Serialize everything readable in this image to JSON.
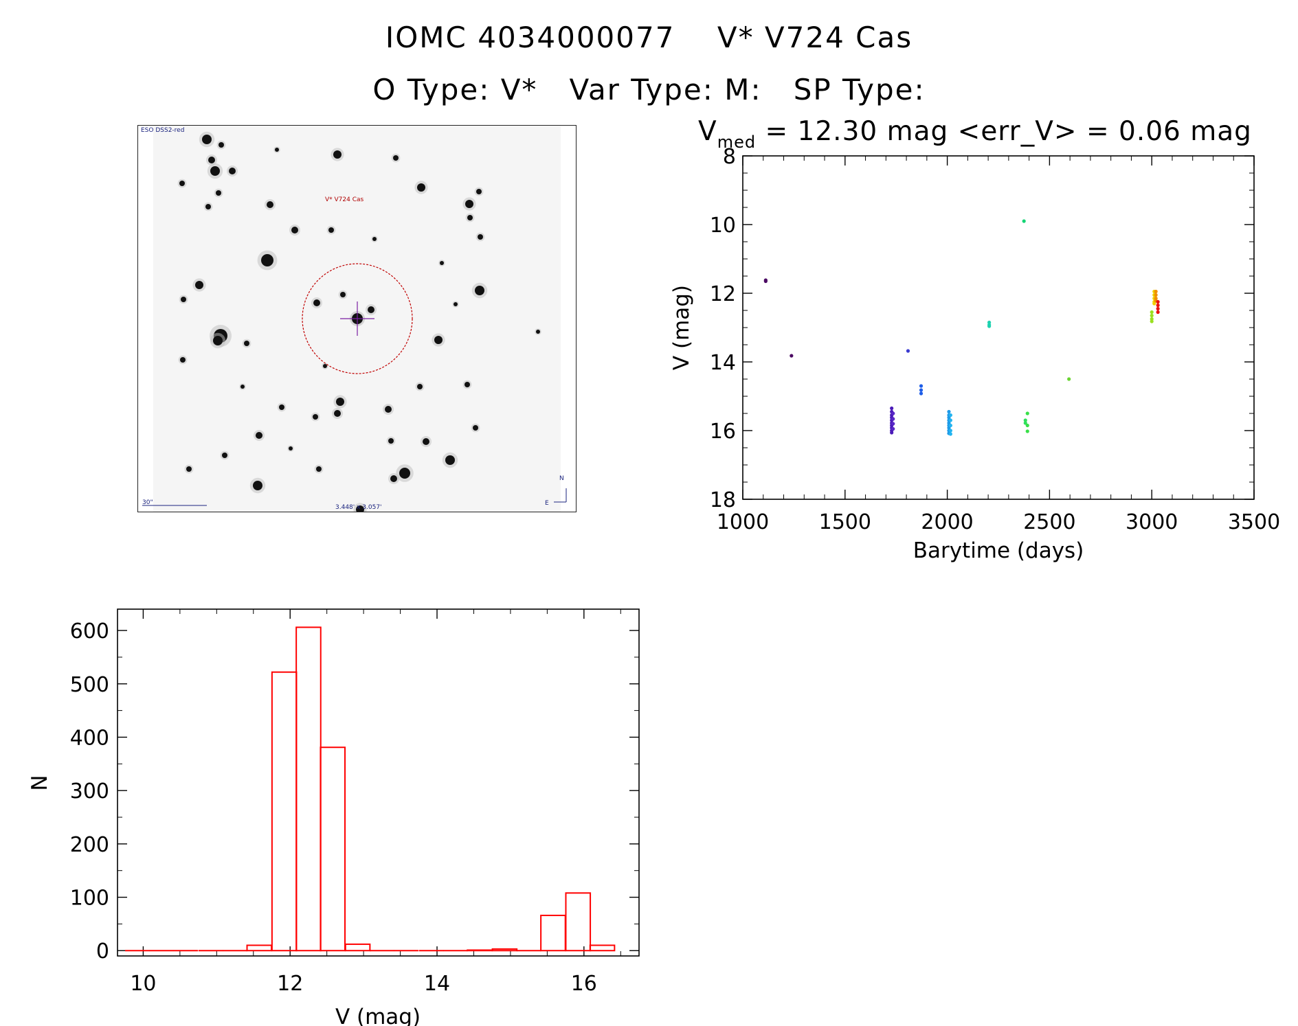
{
  "header": {
    "title_line1": "IOMC 4034000077    V* V724 Cas",
    "title_line2": "O Type: V*   Var Type: M:   SP Type:"
  },
  "sky_image": {
    "survey_label": "ESO DSS2-red",
    "target_label": "V* V724 Cas",
    "scale_label": "30\"",
    "fov_label": "3.448' x 3.057'",
    "compass_north": "N",
    "compass_east": "E",
    "circle_color": "#c00000",
    "cross_color": "#7a1fa2"
  },
  "chart_data": [
    {
      "type": "scatter",
      "subtitle_prefix": "V",
      "subtitle_sub": "med",
      "subtitle_rest": " = 12.30 mag <err_V> = 0.06 mag",
      "xlabel": "Barytime (days)",
      "ylabel": "V (mag)",
      "xlim": [
        1000,
        3500
      ],
      "ylim": [
        18,
        8
      ],
      "y_inverted": true,
      "xticks": [
        1000,
        1500,
        2000,
        2500,
        3000,
        3500
      ],
      "yticks": [
        8,
        10,
        12,
        14,
        16,
        18
      ],
      "clusters": [
        {
          "x": 1112,
          "y": [
            11.62,
            11.65
          ],
          "color": "#4b0a63"
        },
        {
          "x": 1238,
          "y": [
            13.82
          ],
          "color": "#4b0a63"
        },
        {
          "x": 1728,
          "y": [
            15.35,
            15.45,
            15.55,
            15.62,
            15.7,
            15.78,
            15.85,
            15.92,
            16.0,
            16.06
          ],
          "color": "#4b1bb8"
        },
        {
          "x": 1735,
          "y": [
            15.5,
            15.66,
            15.8,
            15.95
          ],
          "color": "#5a28c8"
        },
        {
          "x": 1808,
          "y": [
            13.68
          ],
          "color": "#3a3ad0"
        },
        {
          "x": 1872,
          "y": [
            14.7,
            14.82,
            14.92
          ],
          "color": "#1f5ee8"
        },
        {
          "x": 2008,
          "y": [
            15.45,
            15.55,
            15.62,
            15.7,
            15.78,
            15.85,
            15.92,
            16.0,
            16.08
          ],
          "color": "#1f9ae8"
        },
        {
          "x": 2016,
          "y": [
            15.55,
            15.7,
            15.85,
            16.0,
            16.1
          ],
          "color": "#22b4f0"
        },
        {
          "x": 2205,
          "y": [
            12.85,
            12.92,
            12.96
          ],
          "color": "#1ed2b0"
        },
        {
          "x": 2375,
          "y": [
            9.9
          ],
          "color": "#14d474"
        },
        {
          "x": 2382,
          "y": [
            15.7,
            15.78
          ],
          "color": "#2ee05a"
        },
        {
          "x": 2392,
          "y": [
            15.5,
            15.85,
            16.02
          ],
          "color": "#38e048"
        },
        {
          "x": 2595,
          "y": [
            14.5
          ],
          "color": "#6ad432"
        },
        {
          "x": 3000,
          "y": [
            12.55,
            12.65,
            12.75,
            12.82
          ],
          "color": "#9ae020"
        },
        {
          "x": 3012,
          "y": [
            11.95,
            12.05,
            12.15,
            12.25,
            12.3
          ],
          "color": "#f0d000"
        },
        {
          "x": 3020,
          "y": [
            11.95,
            12.05,
            12.15,
            12.22
          ],
          "color": "#f09000"
        },
        {
          "x": 3030,
          "y": [
            12.25,
            12.35,
            12.45,
            12.55
          ],
          "color": "#e81010"
        }
      ]
    },
    {
      "type": "bar",
      "histogram": true,
      "xlabel": "V (mag)",
      "ylabel": "N",
      "xlim": [
        9.65,
        16.75
      ],
      "ylim": [
        -10,
        640
      ],
      "xticks": [
        10,
        12,
        14,
        16
      ],
      "yticks": [
        0,
        100,
        200,
        300,
        400,
        500,
        600
      ],
      "bin_width": 0.333,
      "bins": [
        {
          "x": 9.92,
          "value": 0
        },
        {
          "x": 10.25,
          "value": 0
        },
        {
          "x": 10.58,
          "value": 0
        },
        {
          "x": 10.92,
          "value": 0
        },
        {
          "x": 11.25,
          "value": 0
        },
        {
          "x": 11.58,
          "value": 10
        },
        {
          "x": 11.92,
          "value": 522
        },
        {
          "x": 12.25,
          "value": 606
        },
        {
          "x": 12.58,
          "value": 381
        },
        {
          "x": 12.92,
          "value": 12
        },
        {
          "x": 13.25,
          "value": 0
        },
        {
          "x": 13.58,
          "value": 0
        },
        {
          "x": 13.92,
          "value": 0
        },
        {
          "x": 14.25,
          "value": 0
        },
        {
          "x": 14.58,
          "value": 1
        },
        {
          "x": 14.92,
          "value": 3
        },
        {
          "x": 15.25,
          "value": 0
        },
        {
          "x": 15.58,
          "value": 66
        },
        {
          "x": 15.92,
          "value": 108
        },
        {
          "x": 16.25,
          "value": 10
        }
      ],
      "color": "#ff0000"
    }
  ]
}
